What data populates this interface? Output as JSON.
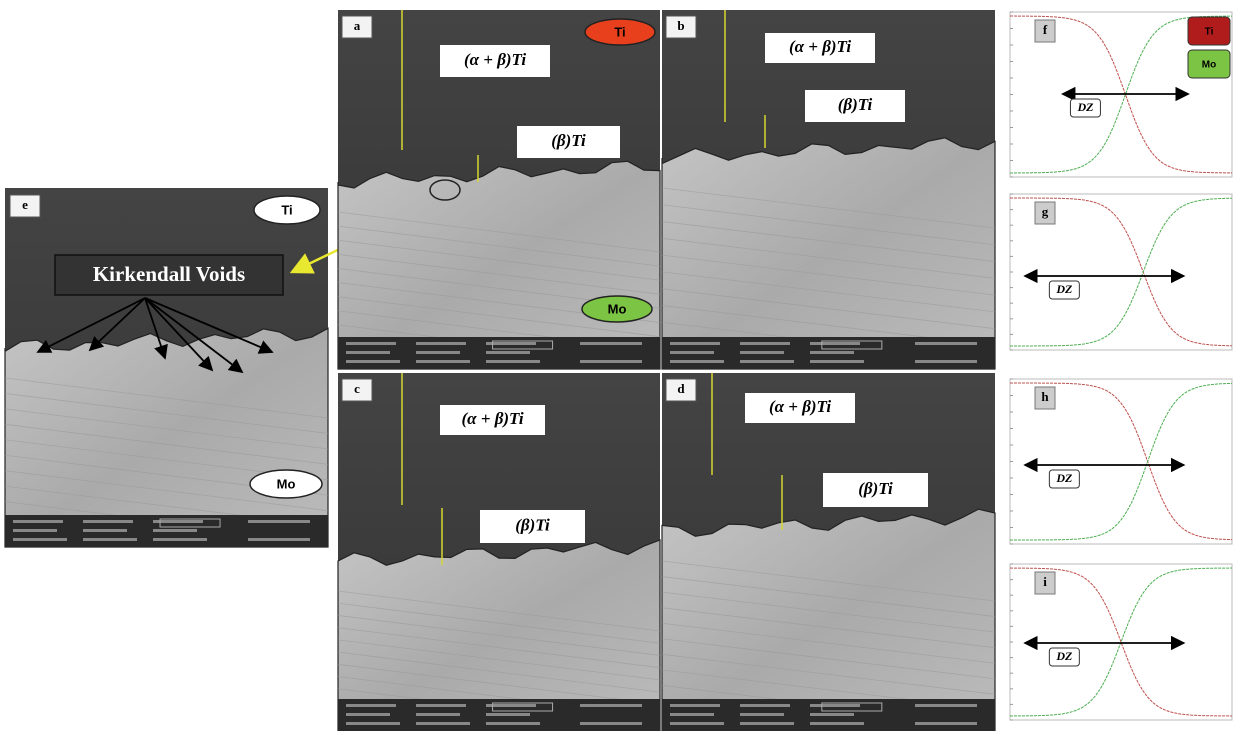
{
  "panel_e": {
    "label": "e",
    "top_badge": "Ti",
    "callout": "Kirkendall Voids",
    "bottom_badge": "Mo"
  },
  "sem_panels": [
    {
      "label": "a",
      "upper_phase": "(α + β)Ti",
      "lower_phase": "(β)Ti",
      "top_badge": "Ti",
      "bottom_badge": "Mo"
    },
    {
      "label": "b",
      "upper_phase": "(α + β)Ti",
      "lower_phase": "(β)Ti"
    },
    {
      "label": "c",
      "upper_phase": "(α + β)Ti",
      "lower_phase": "(β)Ti"
    },
    {
      "label": "d",
      "upper_phase": "(α + β)Ti",
      "lower_phase": "(β)Ti"
    }
  ],
  "line_scans": [
    {
      "label": "f",
      "zone": "DZ",
      "legend": [
        "Ti",
        "Mo"
      ]
    },
    {
      "label": "g",
      "zone": "DZ"
    },
    {
      "label": "h",
      "zone": "DZ"
    },
    {
      "label": "i",
      "zone": "DZ"
    }
  ]
}
